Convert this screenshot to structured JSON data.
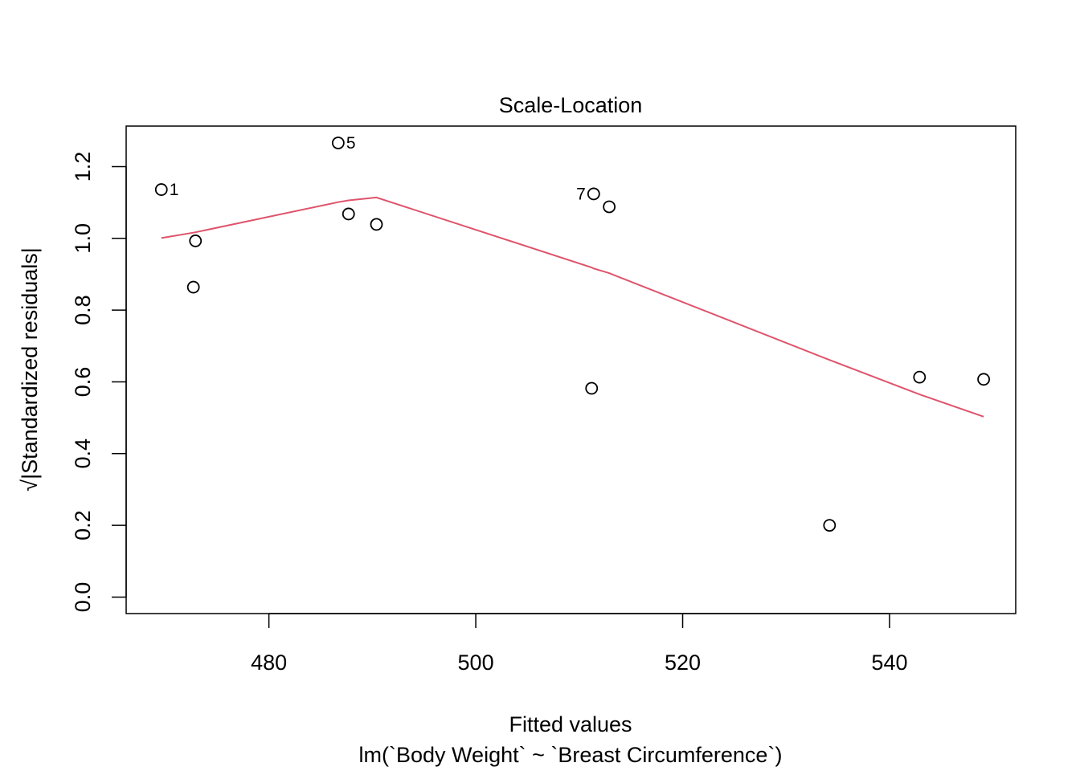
{
  "chart_data": {
    "type": "scatter",
    "title": "Scale-Location",
    "xlabel": "Fitted values",
    "subtitle": "lm(`Body Weight` ~ `Breast Circumference`)",
    "ylabel": "√|Standardized residuals|",
    "xlim": [
      466.2,
      552.2
    ],
    "ylim": [
      -0.046,
      1.313
    ],
    "x_ticks": [
      480,
      500,
      520,
      540
    ],
    "x_tick_labels": [
      "480",
      "500",
      "520",
      "540"
    ],
    "y_ticks": [
      0.0,
      0.2,
      0.4,
      0.6,
      0.8,
      1.0,
      1.2
    ],
    "y_tick_labels": [
      "0.0",
      "0.2",
      "0.4",
      "0.6",
      "0.8",
      "1.0",
      "1.2"
    ],
    "grid": false,
    "points": [
      {
        "x": 469.6,
        "y": 1.136,
        "label": "1",
        "label_side": "right"
      },
      {
        "x": 472.7,
        "y": 0.864,
        "label": ""
      },
      {
        "x": 472.9,
        "y": 0.993,
        "label": ""
      },
      {
        "x": 486.7,
        "y": 1.266,
        "label": "5",
        "label_side": "right"
      },
      {
        "x": 487.7,
        "y": 1.068,
        "label": ""
      },
      {
        "x": 490.4,
        "y": 1.039,
        "label": ""
      },
      {
        "x": 511.2,
        "y": 0.582,
        "label": ""
      },
      {
        "x": 511.4,
        "y": 1.124,
        "label": "7",
        "label_side": "left"
      },
      {
        "x": 512.9,
        "y": 1.088,
        "label": ""
      },
      {
        "x": 534.2,
        "y": 0.2,
        "label": ""
      },
      {
        "x": 542.9,
        "y": 0.613,
        "label": ""
      },
      {
        "x": 549.1,
        "y": 0.607,
        "label": ""
      }
    ],
    "smooth_line": {
      "color": "#DF536B",
      "x": [
        469.6,
        472.7,
        472.9,
        486.7,
        487.7,
        490.4,
        511.2,
        511.4,
        512.9,
        534.2,
        542.9,
        549.1
      ],
      "y": [
        1.001,
        1.016,
        1.017,
        1.101,
        1.106,
        1.114,
        0.919,
        0.916,
        0.903,
        0.661,
        0.565,
        0.503
      ]
    },
    "point_color": "#000000"
  }
}
